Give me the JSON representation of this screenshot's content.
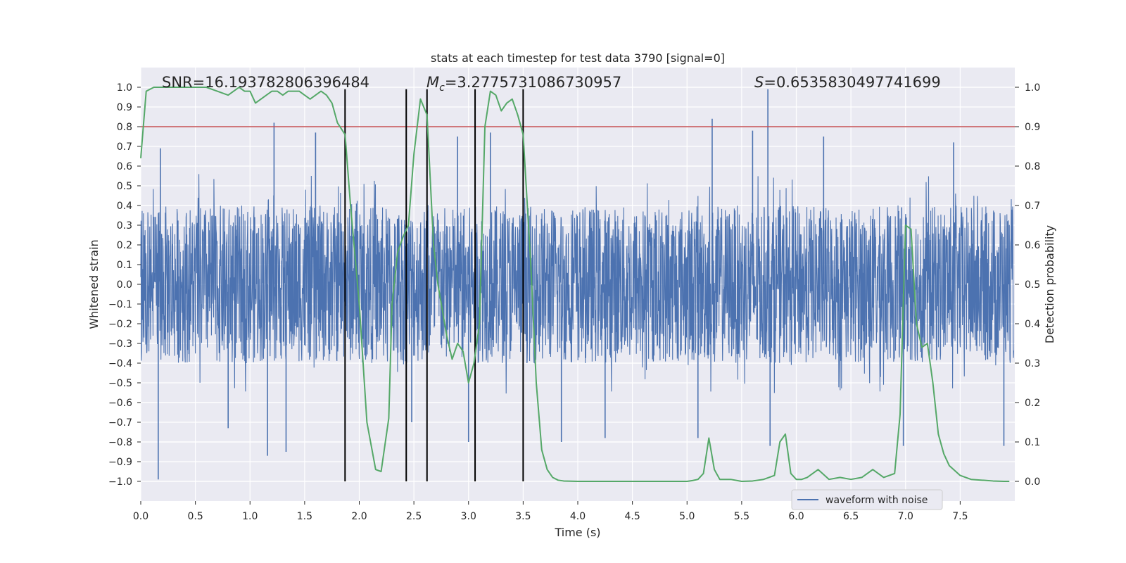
{
  "chart_data": {
    "type": "line",
    "title": "stats at each timestep for test data 3790 [signal=0]",
    "xlabel": "Time (s)",
    "ylabel_left": "Whitened strain",
    "ylabel_right": "Detection probability",
    "xlim": [
      0.0,
      8.0
    ],
    "ylim_left": [
      -1.1,
      1.1
    ],
    "ylim_right": [
      -0.05,
      1.05
    ],
    "x_ticks": [
      "0.0",
      "0.5",
      "1.0",
      "1.5",
      "2.0",
      "2.5",
      "3.0",
      "3.5",
      "4.0",
      "4.5",
      "5.0",
      "5.5",
      "6.0",
      "6.5",
      "7.0",
      "7.5"
    ],
    "y_left_ticks": [
      "1.0",
      "0.9",
      "0.8",
      "0.7",
      "0.6",
      "0.5",
      "0.4",
      "0.3",
      "0.2",
      "0.1",
      "0.0",
      "−0.1",
      "−0.2",
      "−0.3",
      "−0.4",
      "−0.5",
      "−0.6",
      "−0.7",
      "−0.8",
      "−0.9",
      "−1.0"
    ],
    "y_right_ticks": [
      "1.0",
      "0.9",
      "0.8",
      "0.7",
      "0.6",
      "0.5",
      "0.4",
      "0.3",
      "0.2",
      "0.1",
      "0.0"
    ],
    "annotations": {
      "snr": "SNR=16.193782806396484",
      "mc_symbol": "M",
      "mc_sub": "c",
      "mc_value": "=3.2775731086730957",
      "s_symbol": "S",
      "s_value": "=0.6535830497741699"
    },
    "threshold": {
      "value": 0.9,
      "axis": "right",
      "color": "#c44e52"
    },
    "vertical_lines": [
      1.87,
      2.43,
      2.62,
      3.06,
      3.5
    ],
    "waveform": {
      "name": "waveform with noise",
      "color": "#4c72b0",
      "x_range": [
        0.0,
        7.99
      ],
      "typical_amplitude": 0.4,
      "peaks": [
        {
          "t": 0.16,
          "v": -0.99
        },
        {
          "t": 0.18,
          "v": 0.69
        },
        {
          "t": 0.8,
          "v": -0.73
        },
        {
          "t": 1.16,
          "v": -0.87
        },
        {
          "t": 1.22,
          "v": 0.82
        },
        {
          "t": 1.33,
          "v": -0.85
        },
        {
          "t": 1.6,
          "v": 0.77
        },
        {
          "t": 2.48,
          "v": -0.7
        },
        {
          "t": 2.9,
          "v": 0.75
        },
        {
          "t": 3.0,
          "v": -0.8
        },
        {
          "t": 3.2,
          "v": 0.77
        },
        {
          "t": 3.85,
          "v": -0.8
        },
        {
          "t": 4.25,
          "v": -0.78
        },
        {
          "t": 5.1,
          "v": -0.78
        },
        {
          "t": 5.23,
          "v": 0.84
        },
        {
          "t": 5.6,
          "v": 0.78
        },
        {
          "t": 5.74,
          "v": 0.99
        },
        {
          "t": 5.76,
          "v": -0.82
        },
        {
          "t": 6.25,
          "v": 0.75
        },
        {
          "t": 6.98,
          "v": -0.82
        },
        {
          "t": 7.44,
          "v": 0.72
        },
        {
          "t": 7.9,
          "v": -0.82
        }
      ]
    },
    "detection_probability": {
      "color": "#55a868",
      "x": [
        0.0,
        0.05,
        0.12,
        0.2,
        0.3,
        0.4,
        0.5,
        0.6,
        0.7,
        0.8,
        0.85,
        0.9,
        0.95,
        1.0,
        1.05,
        1.1,
        1.15,
        1.2,
        1.25,
        1.3,
        1.35,
        1.4,
        1.45,
        1.5,
        1.55,
        1.6,
        1.65,
        1.7,
        1.75,
        1.8,
        1.87,
        1.92,
        2.0,
        2.07,
        2.15,
        2.2,
        2.27,
        2.3,
        2.35,
        2.4,
        2.45,
        2.5,
        2.56,
        2.62,
        2.68,
        2.72,
        2.8,
        2.85,
        2.9,
        2.95,
        3.0,
        3.05,
        3.1,
        3.15,
        3.2,
        3.25,
        3.3,
        3.35,
        3.4,
        3.45,
        3.5,
        3.57,
        3.62,
        3.67,
        3.72,
        3.77,
        3.82,
        3.87,
        4.0,
        4.5,
        5.0,
        5.05,
        5.1,
        5.15,
        5.2,
        5.25,
        5.3,
        5.4,
        5.5,
        5.6,
        5.7,
        5.75,
        5.8,
        5.85,
        5.9,
        5.95,
        6.0,
        6.05,
        6.1,
        6.2,
        6.3,
        6.4,
        6.5,
        6.6,
        6.7,
        6.8,
        6.9,
        6.95,
        7.0,
        7.05,
        7.1,
        7.15,
        7.2,
        7.25,
        7.3,
        7.35,
        7.4,
        7.5,
        7.6,
        7.7,
        7.8,
        7.9,
        7.95
      ],
      "y": [
        0.82,
        0.99,
        1.0,
        1.0,
        1.0,
        1.0,
        1.0,
        1.0,
        0.99,
        0.98,
        0.99,
        1.0,
        0.99,
        0.99,
        0.96,
        0.97,
        0.98,
        0.99,
        0.99,
        0.98,
        0.99,
        0.99,
        0.99,
        0.98,
        0.97,
        0.98,
        0.99,
        0.98,
        0.96,
        0.91,
        0.88,
        0.7,
        0.45,
        0.15,
        0.03,
        0.025,
        0.16,
        0.45,
        0.58,
        0.62,
        0.65,
        0.83,
        0.97,
        0.93,
        0.6,
        0.5,
        0.37,
        0.31,
        0.35,
        0.33,
        0.25,
        0.3,
        0.4,
        0.9,
        0.99,
        0.98,
        0.94,
        0.96,
        0.97,
        0.93,
        0.88,
        0.55,
        0.25,
        0.08,
        0.03,
        0.01,
        0.003,
        0.001,
        0.0,
        0.0,
        0.0,
        0.002,
        0.005,
        0.02,
        0.11,
        0.03,
        0.005,
        0.005,
        0.0,
        0.001,
        0.005,
        0.01,
        0.015,
        0.1,
        0.12,
        0.02,
        0.005,
        0.005,
        0.01,
        0.03,
        0.005,
        0.01,
        0.005,
        0.01,
        0.03,
        0.01,
        0.02,
        0.17,
        0.65,
        0.64,
        0.4,
        0.34,
        0.35,
        0.25,
        0.12,
        0.07,
        0.04,
        0.015,
        0.005,
        0.003,
        0.001,
        0.0,
        0.0
      ]
    },
    "legend": {
      "entry": "waveform with noise",
      "placement": "lower-right"
    }
  }
}
